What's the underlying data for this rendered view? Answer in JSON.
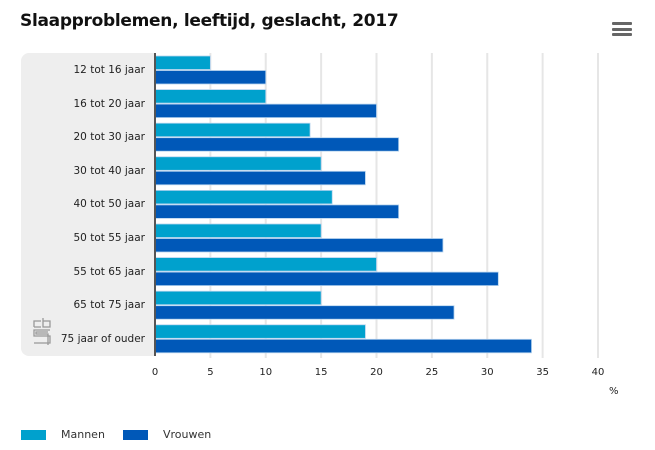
{
  "title": "Slaapproblemen, leeftijd, geslacht, 2017",
  "menu_icon": "hamburger-menu-icon",
  "logo": "cbs-logo",
  "chart_data": {
    "type": "bar",
    "orientation": "horizontal",
    "title": "Slaapproblemen, leeftijd, geslacht, 2017",
    "categories": [
      "12 tot 16 jaar",
      "16 tot 20 jaar",
      "20 tot 30 jaar",
      "30 tot 40 jaar",
      "40 tot 50 jaar",
      "50 tot 55 jaar",
      "55 tot 65 jaar",
      "65 tot 75 jaar",
      "75 jaar of ouder"
    ],
    "series": [
      {
        "name": "Mannen",
        "color": "#00a1cd",
        "values": [
          5,
          10,
          14,
          15,
          16,
          15,
          20,
          15,
          19
        ]
      },
      {
        "name": "Vrouwen",
        "color": "#0058b8",
        "values": [
          10,
          20,
          22,
          19,
          22,
          26,
          31,
          27,
          34
        ]
      }
    ],
    "xlabel": "%",
    "ylabel": "",
    "xlim": [
      0,
      40
    ],
    "xticks": [
      "0",
      "5",
      "10",
      "15",
      "20",
      "25",
      "30",
      "35",
      "40"
    ],
    "grid": true,
    "legend": "bottom-left"
  }
}
